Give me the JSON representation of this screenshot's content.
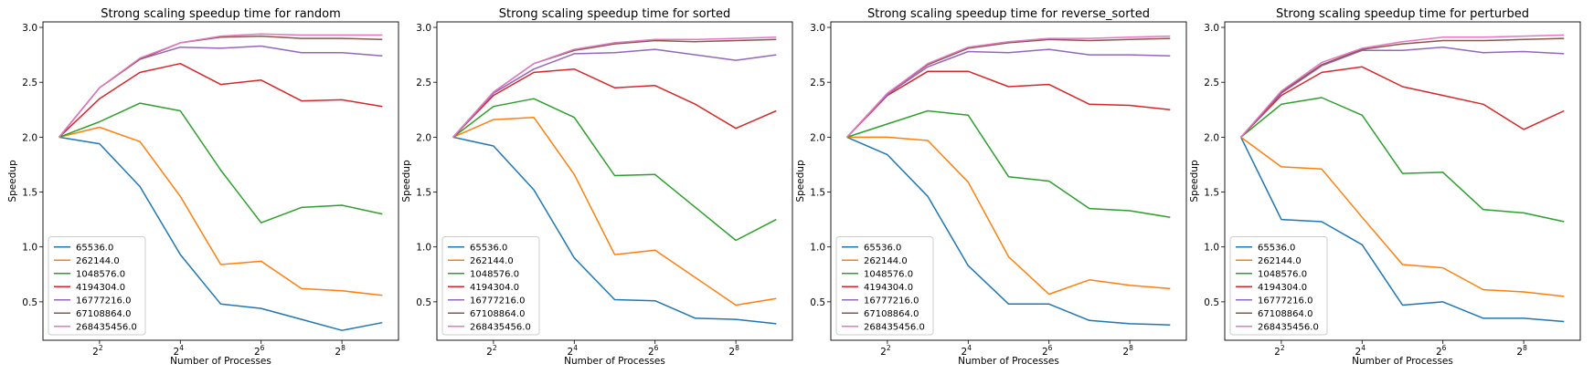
{
  "colors": [
    "#1f77b4",
    "#ff7f0e",
    "#2ca02c",
    "#d62728",
    "#9467bd",
    "#8c564b",
    "#e377c2"
  ],
  "chart_data": [
    {
      "type": "line",
      "title": "Strong scaling speedup time for random",
      "xlabel": "Number of Processes",
      "ylabel": "Speedup",
      "xscale": "log2",
      "x": [
        2,
        4,
        8,
        16,
        32,
        64,
        128,
        256,
        512
      ],
      "xticks": [
        {
          "base": "2",
          "exp": "2",
          "value": 4
        },
        {
          "base": "2",
          "exp": "4",
          "value": 16
        },
        {
          "base": "2",
          "exp": "6",
          "value": 64
        },
        {
          "base": "2",
          "exp": "8",
          "value": 256
        }
      ],
      "yticks": [
        "0.5",
        "1.0",
        "1.5",
        "2.0",
        "2.5",
        "3.0"
      ],
      "ylim": [
        0.15,
        3.05
      ],
      "legend": "lower-left",
      "series": [
        {
          "name": "65536.0",
          "values": [
            2.0,
            1.94,
            1.55,
            0.93,
            0.48,
            0.44,
            0.34,
            0.24,
            0.31
          ]
        },
        {
          "name": "262144.0",
          "values": [
            2.0,
            2.09,
            1.96,
            1.46,
            0.84,
            0.87,
            0.62,
            0.6,
            0.56
          ]
        },
        {
          "name": "1048576.0",
          "values": [
            2.0,
            2.14,
            2.31,
            2.24,
            1.7,
            1.22,
            1.36,
            1.38,
            1.3
          ]
        },
        {
          "name": "4194304.0",
          "values": [
            2.0,
            2.35,
            2.59,
            2.67,
            2.48,
            2.52,
            2.33,
            2.34,
            2.28
          ]
        },
        {
          "name": "16777216.0",
          "values": [
            2.0,
            2.45,
            2.71,
            2.82,
            2.81,
            2.83,
            2.77,
            2.77,
            2.74
          ]
        },
        {
          "name": "67108864.0",
          "values": [
            2.0,
            2.45,
            2.71,
            2.86,
            2.91,
            2.92,
            2.9,
            2.9,
            2.89
          ]
        },
        {
          "name": "268435456.0",
          "values": [
            2.0,
            2.45,
            2.72,
            2.86,
            2.92,
            2.94,
            2.93,
            2.93,
            2.93
          ]
        }
      ]
    },
    {
      "type": "line",
      "title": "Strong scaling speedup time for sorted",
      "xlabel": "Number of Processes",
      "ylabel": "Speedup",
      "xscale": "log2",
      "x": [
        2,
        4,
        8,
        16,
        32,
        64,
        128,
        256,
        512
      ],
      "xticks": [
        {
          "base": "2",
          "exp": "2",
          "value": 4
        },
        {
          "base": "2",
          "exp": "4",
          "value": 16
        },
        {
          "base": "2",
          "exp": "6",
          "value": 64
        },
        {
          "base": "2",
          "exp": "8",
          "value": 256
        }
      ],
      "yticks": [
        "0.5",
        "1.0",
        "1.5",
        "2.0",
        "2.5",
        "3.0"
      ],
      "ylim": [
        0.15,
        3.05
      ],
      "legend": "lower-left",
      "series": [
        {
          "name": "65536.0",
          "values": [
            2.0,
            1.92,
            1.52,
            0.9,
            0.52,
            0.51,
            0.35,
            0.34,
            0.3
          ]
        },
        {
          "name": "262144.0",
          "values": [
            2.0,
            2.16,
            2.18,
            1.66,
            0.93,
            0.97,
            0.72,
            0.47,
            0.53
          ]
        },
        {
          "name": "1048576.0",
          "values": [
            2.0,
            2.28,
            2.35,
            2.18,
            1.65,
            1.66,
            1.36,
            1.06,
            1.25
          ]
        },
        {
          "name": "4194304.0",
          "values": [
            2.0,
            2.38,
            2.59,
            2.62,
            2.45,
            2.47,
            2.3,
            2.08,
            2.24
          ]
        },
        {
          "name": "16777216.0",
          "values": [
            2.0,
            2.4,
            2.62,
            2.76,
            2.77,
            2.8,
            2.75,
            2.7,
            2.75
          ]
        },
        {
          "name": "67108864.0",
          "values": [
            2.0,
            2.41,
            2.67,
            2.79,
            2.85,
            2.88,
            2.87,
            2.88,
            2.89
          ]
        },
        {
          "name": "268435456.0",
          "values": [
            2.0,
            2.41,
            2.67,
            2.8,
            2.86,
            2.89,
            2.89,
            2.9,
            2.91
          ]
        }
      ]
    },
    {
      "type": "line",
      "title": "Strong scaling speedup time for reverse_sorted",
      "xlabel": "Number of Processes",
      "ylabel": "Speedup",
      "xscale": "log2",
      "x": [
        2,
        4,
        8,
        16,
        32,
        64,
        128,
        256,
        512
      ],
      "xticks": [
        {
          "base": "2",
          "exp": "2",
          "value": 4
        },
        {
          "base": "2",
          "exp": "4",
          "value": 16
        },
        {
          "base": "2",
          "exp": "6",
          "value": 64
        },
        {
          "base": "2",
          "exp": "8",
          "value": 256
        }
      ],
      "yticks": [
        "0.5",
        "1.0",
        "1.5",
        "2.0",
        "2.5",
        "3.0"
      ],
      "ylim": [
        0.15,
        3.05
      ],
      "legend": "lower-left",
      "series": [
        {
          "name": "65536.0",
          "values": [
            2.0,
            1.84,
            1.46,
            0.83,
            0.48,
            0.48,
            0.33,
            0.3,
            0.29
          ]
        },
        {
          "name": "262144.0",
          "values": [
            2.0,
            2.0,
            1.97,
            1.59,
            0.91,
            0.57,
            0.7,
            0.65,
            0.62
          ]
        },
        {
          "name": "1048576.0",
          "values": [
            2.0,
            2.12,
            2.24,
            2.2,
            1.64,
            1.6,
            1.35,
            1.33,
            1.27
          ]
        },
        {
          "name": "4194304.0",
          "values": [
            2.0,
            2.38,
            2.6,
            2.6,
            2.46,
            2.48,
            2.3,
            2.29,
            2.25
          ]
        },
        {
          "name": "16777216.0",
          "values": [
            2.0,
            2.39,
            2.64,
            2.78,
            2.77,
            2.8,
            2.75,
            2.75,
            2.74
          ]
        },
        {
          "name": "67108864.0",
          "values": [
            2.0,
            2.4,
            2.66,
            2.81,
            2.86,
            2.89,
            2.88,
            2.89,
            2.9
          ]
        },
        {
          "name": "268435456.0",
          "values": [
            2.0,
            2.4,
            2.67,
            2.82,
            2.87,
            2.9,
            2.9,
            2.91,
            2.92
          ]
        }
      ]
    },
    {
      "type": "line",
      "title": "Strong scaling speedup time for perturbed",
      "xlabel": "Number of Processes",
      "ylabel": "Speedup",
      "xscale": "log2",
      "x": [
        2,
        4,
        8,
        16,
        32,
        64,
        128,
        256,
        512
      ],
      "xticks": [
        {
          "base": "2",
          "exp": "2",
          "value": 4
        },
        {
          "base": "2",
          "exp": "4",
          "value": 16
        },
        {
          "base": "2",
          "exp": "6",
          "value": 64
        },
        {
          "base": "2",
          "exp": "8",
          "value": 256
        }
      ],
      "yticks": [
        "0.5",
        "1.0",
        "1.5",
        "2.0",
        "2.5",
        "3.0"
      ],
      "ylim": [
        0.15,
        3.05
      ],
      "legend": "lower-left",
      "series": [
        {
          "name": "65536.0",
          "values": [
            2.0,
            1.25,
            1.23,
            1.02,
            0.47,
            0.5,
            0.35,
            0.35,
            0.32
          ]
        },
        {
          "name": "262144.0",
          "values": [
            2.0,
            1.73,
            1.71,
            1.27,
            0.84,
            0.81,
            0.61,
            0.59,
            0.55
          ]
        },
        {
          "name": "1048576.0",
          "values": [
            2.0,
            2.3,
            2.36,
            2.2,
            1.67,
            1.68,
            1.34,
            1.31,
            1.23
          ]
        },
        {
          "name": "4194304.0",
          "values": [
            2.0,
            2.38,
            2.59,
            2.64,
            2.46,
            2.38,
            2.3,
            2.07,
            2.24
          ]
        },
        {
          "name": "16777216.0",
          "values": [
            2.0,
            2.4,
            2.65,
            2.79,
            2.79,
            2.82,
            2.77,
            2.78,
            2.76
          ]
        },
        {
          "name": "67108864.0",
          "values": [
            2.0,
            2.41,
            2.66,
            2.8,
            2.85,
            2.88,
            2.88,
            2.89,
            2.9
          ]
        },
        {
          "name": "268435456.0",
          "values": [
            2.0,
            2.42,
            2.68,
            2.81,
            2.87,
            2.91,
            2.91,
            2.92,
            2.93
          ]
        }
      ]
    }
  ]
}
